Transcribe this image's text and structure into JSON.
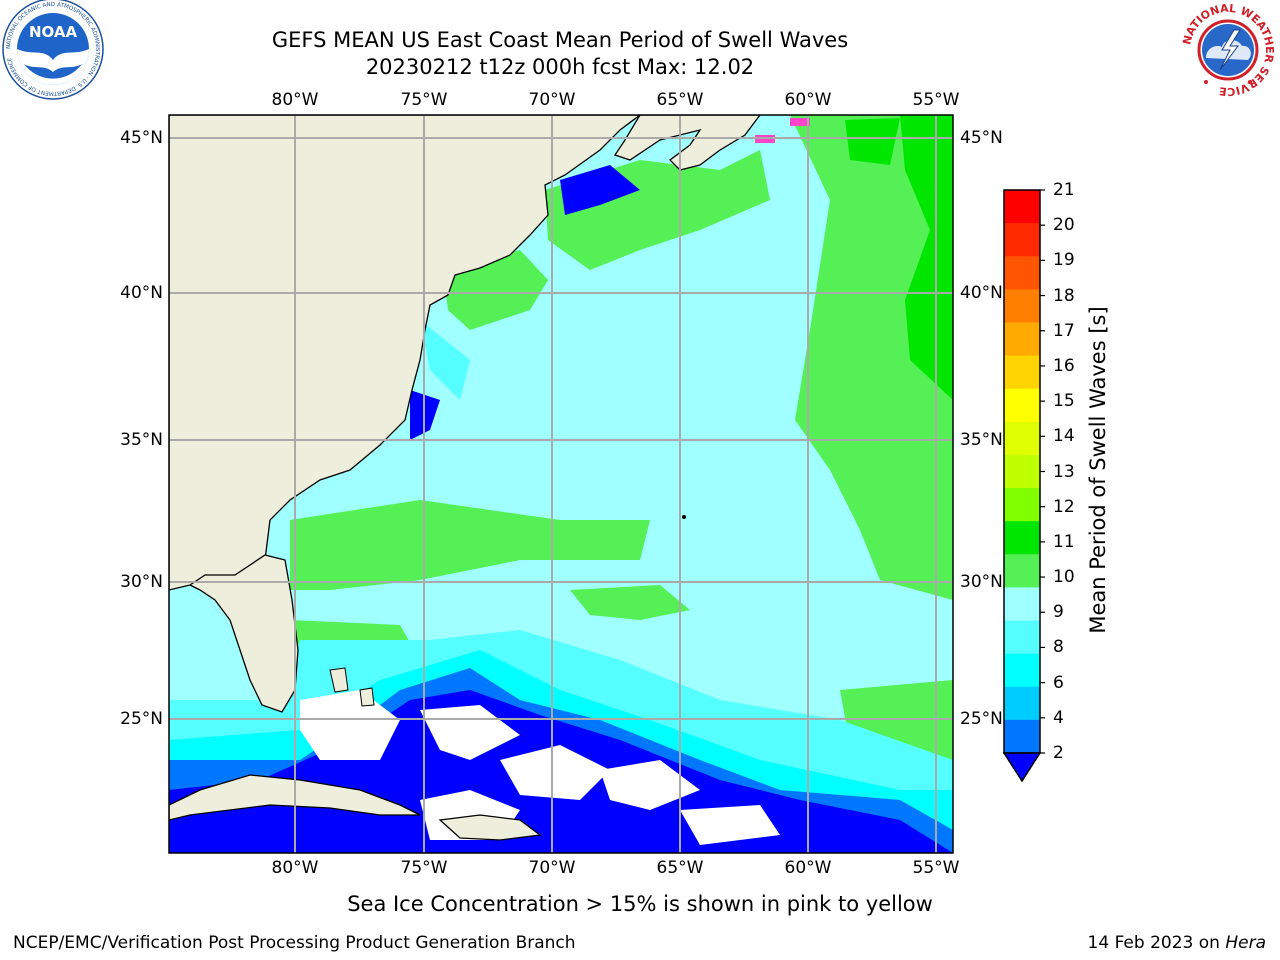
{
  "title": {
    "line1": "GEFS MEAN US East Coast Mean Period of Swell Waves",
    "line2": "20230212 t12z 000h fcst   Max: 12.02"
  },
  "map": {
    "lon_labels": [
      "80°W",
      "75°W",
      "70°W",
      "65°W",
      "60°W",
      "55°W"
    ],
    "lat_labels": [
      "45°N",
      "40°N",
      "35°N",
      "30°N",
      "25°N"
    ]
  },
  "colorbar": {
    "label": "Mean Period of Swell Waves [s]",
    "ticks": [
      "21",
      "20",
      "19",
      "18",
      "17",
      "16",
      "15",
      "14",
      "13",
      "12",
      "11",
      "10",
      "9",
      "8",
      "6",
      "4",
      "2"
    ],
    "colors": [
      "#ff0000",
      "#ff2a00",
      "#ff5500",
      "#ff7f00",
      "#ffaa00",
      "#ffd400",
      "#ffff00",
      "#e0ff00",
      "#c0ff00",
      "#80ff00",
      "#00e600",
      "#55f055",
      "#a0ffff",
      "#55ffff",
      "#00ffff",
      "#00ccff",
      "#0077ff"
    ],
    "under_color": "#0000ff"
  },
  "colors": {
    "land": "#eeeedd",
    "grid": "#aaaaaa",
    "no_data": "#ffffff",
    "sea_ice": "#ff44cc"
  },
  "note": "Sea Ice Concentration > 15% is shown in pink to yellow",
  "footer": {
    "left": "NCEP/EMC/Verification Post Processing Product Generation Branch",
    "right_prefix": "14 Feb 2023 on ",
    "right_host": "Hera"
  },
  "logos": {
    "left": {
      "text": "NOAA",
      "ring_text": "NATIONAL OCEANIC AND ATMOSPHERIC ADMINISTRATION · U.S. DEPARTMENT OF COMMERCE"
    },
    "right": {
      "ring_text": "NATIONAL WEATHER SERVICE"
    }
  }
}
